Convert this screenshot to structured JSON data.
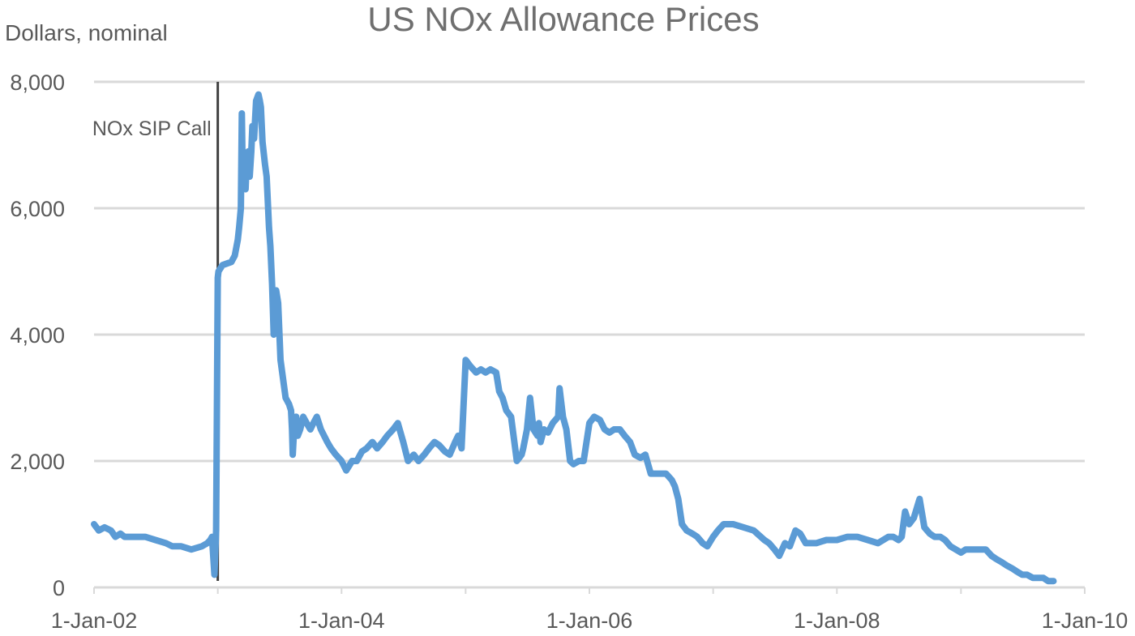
{
  "chart_data": {
    "type": "line",
    "title": "US NOx Allowance Prices",
    "ylabel": "Dollars, nominal",
    "xlabel": "",
    "ylim": [
      0,
      8000
    ],
    "yticks": [
      0,
      2000,
      4000,
      6000,
      8000
    ],
    "ytick_labels": [
      "0",
      "2,000",
      "4,000",
      "6,000",
      "8,000"
    ],
    "xlim": [
      "2002-01-01",
      "2010-01-01"
    ],
    "xticks": [
      "2002-01-01",
      "2004-01-01",
      "2006-01-01",
      "2008-01-01",
      "2010-01-01"
    ],
    "xtick_labels": [
      "1-Jan-02",
      "1-Jan-04",
      "1-Jan-06",
      "1-Jan-08",
      "1-Jan-10"
    ],
    "xminor_ticks": [
      "2003-01-01",
      "2005-01-01",
      "2007-01-01",
      "2009-01-01"
    ],
    "grid": "horizontal",
    "line_color": "#5b9bd5",
    "annotation": {
      "text": "NOx SIP Call",
      "date": "2003-01-01"
    },
    "series": [
      {
        "x": [
          "2002-01-01",
          "2002-01-15",
          "2002-02-01",
          "2002-02-20",
          "2002-03-05",
          "2002-03-20",
          "2002-04-01",
          "2002-05-01",
          "2002-06-01",
          "2002-07-01",
          "2002-08-01",
          "2002-08-20",
          "2002-09-15",
          "2002-10-15",
          "2002-11-15",
          "2002-12-01",
          "2002-12-10",
          "2002-12-15",
          "2002-12-22",
          "2002-12-27",
          "2003-01-01",
          "2003-01-03",
          "2003-01-15",
          "2003-02-10",
          "2003-02-20",
          "2003-03-01",
          "2003-03-05",
          "2003-03-10",
          "2003-03-13",
          "2003-03-16",
          "2003-03-20",
          "2003-03-24",
          "2003-03-27",
          "2003-04-01",
          "2003-04-05",
          "2003-04-10",
          "2003-04-13",
          "2003-04-18",
          "2003-04-24",
          "2003-05-01",
          "2003-05-05",
          "2003-05-08",
          "2003-05-13",
          "2003-05-20",
          "2003-05-25",
          "2003-06-01",
          "2003-06-05",
          "2003-06-10",
          "2003-06-15",
          "2003-06-22",
          "2003-06-28",
          "2003-07-05",
          "2003-07-10",
          "2003-07-20",
          "2003-07-30",
          "2003-08-05",
          "2003-08-08",
          "2003-08-10",
          "2003-08-15",
          "2003-08-20",
          "2003-08-25",
          "2003-09-01",
          "2003-09-10",
          "2003-09-20",
          "2003-10-01",
          "2003-10-10",
          "2003-10-20",
          "2003-11-01",
          "2003-11-20",
          "2003-12-01",
          "2003-12-15",
          "2004-01-01",
          "2004-01-15",
          "2004-02-01",
          "2004-02-15",
          "2004-03-01",
          "2004-03-15",
          "2004-04-01",
          "2004-04-15",
          "2004-05-01",
          "2004-05-15",
          "2004-06-01",
          "2004-06-15",
          "2004-07-01",
          "2004-07-15",
          "2004-08-01",
          "2004-08-15",
          "2004-09-01",
          "2004-09-15",
          "2004-10-01",
          "2004-10-15",
          "2004-11-01",
          "2004-11-15",
          "2004-12-01",
          "2004-12-10",
          "2004-12-20",
          "2005-01-01",
          "2005-01-15",
          "2005-02-01",
          "2005-02-15",
          "2005-03-01",
          "2005-03-15",
          "2005-04-01",
          "2005-04-10",
          "2005-04-20",
          "2005-05-01",
          "2005-05-15",
          "2005-06-01",
          "2005-06-15",
          "2005-06-20",
          "2005-07-01",
          "2005-07-10",
          "2005-07-20",
          "2005-08-01",
          "2005-08-05",
          "2005-08-10",
          "2005-08-20",
          "2005-09-01",
          "2005-09-15",
          "2005-10-01",
          "2005-10-05",
          "2005-10-15",
          "2005-10-25",
          "2005-11-05",
          "2005-11-15",
          "2005-12-01",
          "2005-12-15",
          "2006-01-01",
          "2006-01-15",
          "2006-02-01",
          "2006-02-15",
          "2006-03-01",
          "2006-03-15",
          "2006-04-01",
          "2006-04-15",
          "2006-05-01",
          "2006-05-15",
          "2006-06-01",
          "2006-06-15",
          "2006-07-01",
          "2006-07-15",
          "2006-08-01",
          "2006-08-15",
          "2006-09-01",
          "2006-09-10",
          "2006-09-20",
          "2006-10-01",
          "2006-10-15",
          "2006-11-01",
          "2006-11-15",
          "2006-12-01",
          "2006-12-15",
          "2007-01-01",
          "2007-01-15",
          "2007-02-01",
          "2007-02-15",
          "2007-03-01",
          "2007-04-01",
          "2007-05-01",
          "2007-06-01",
          "2007-06-15",
          "2007-07-01",
          "2007-07-15",
          "2007-08-01",
          "2007-08-15",
          "2007-09-01",
          "2007-09-15",
          "2007-10-01",
          "2007-11-01",
          "2007-12-01",
          "2008-01-01",
          "2008-02-01",
          "2008-03-01",
          "2008-04-01",
          "2008-05-01",
          "2008-06-01",
          "2008-06-15",
          "2008-07-01",
          "2008-07-10",
          "2008-07-15",
          "2008-07-20",
          "2008-08-01",
          "2008-08-15",
          "2008-09-01",
          "2008-09-15",
          "2008-10-01",
          "2008-10-15",
          "2008-11-01",
          "2008-11-15",
          "2008-12-01",
          "2009-01-01",
          "2009-01-15",
          "2009-02-01",
          "2009-02-15",
          "2009-03-01",
          "2009-03-15",
          "2009-04-01",
          "2009-04-15",
          "2009-05-01",
          "2009-05-15",
          "2009-06-01",
          "2009-06-15",
          "2009-07-01",
          "2009-07-15",
          "2009-08-01",
          "2009-08-15",
          "2009-09-01",
          "2009-09-15",
          "2009-10-01"
        ],
        "y": [
          1000,
          900,
          950,
          900,
          800,
          850,
          800,
          800,
          800,
          750,
          700,
          650,
          650,
          600,
          650,
          700,
          750,
          800,
          200,
          900,
          4900,
          5000,
          5100,
          5150,
          5250,
          5500,
          5700,
          6000,
          7500,
          6300,
          6800,
          6300,
          6700,
          6900,
          6500,
          6900,
          7300,
          7100,
          7700,
          7800,
          7700,
          7600,
          7050,
          6700,
          6500,
          5700,
          5400,
          4800,
          4000,
          4700,
          4500,
          3600,
          3400,
          3000,
          2900,
          2800,
          2500,
          2100,
          2600,
          2700,
          2400,
          2500,
          2700,
          2600,
          2500,
          2600,
          2700,
          2500,
          2300,
          2200,
          2100,
          2000,
          1850,
          2000,
          2000,
          2150,
          2200,
          2300,
          2200,
          2300,
          2400,
          2500,
          2600,
          2300,
          2000,
          2100,
          2000,
          2100,
          2200,
          2300,
          2250,
          2150,
          2100,
          2300,
          2400,
          2200,
          3600,
          3500,
          3400,
          3450,
          3400,
          3450,
          3400,
          3100,
          3000,
          2800,
          2700,
          2000,
          2100,
          2200,
          2500,
          3000,
          2500,
          2400,
          2600,
          2300,
          2500,
          2450,
          2600,
          2700,
          3150,
          2700,
          2500,
          2000,
          1950,
          2000,
          2000,
          2600,
          2700,
          2650,
          2500,
          2450,
          2500,
          2500,
          2400,
          2300,
          2100,
          2050,
          2100,
          1800,
          1800,
          1800,
          1800,
          1700,
          1600,
          1400,
          1000,
          900,
          850,
          800,
          700,
          650,
          800,
          900,
          1000,
          1000,
          1000,
          950,
          900,
          750,
          700,
          600,
          500,
          700,
          650,
          900,
          850,
          700,
          700,
          750,
          750,
          800,
          800,
          750,
          700,
          800,
          800,
          750,
          800,
          1000,
          1200,
          1000,
          1100,
          1400,
          950,
          850,
          800,
          800,
          750,
          650,
          550,
          600,
          600,
          600,
          600,
          600,
          500,
          450,
          400,
          350,
          300,
          250,
          200,
          200,
          150,
          150,
          150,
          100,
          100
        ]
      }
    ]
  }
}
